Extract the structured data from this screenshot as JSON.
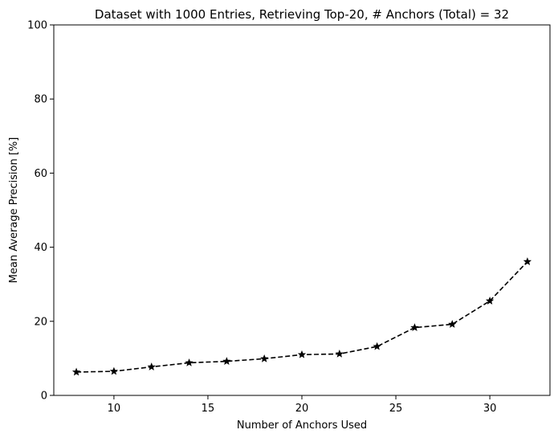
{
  "chart_data": {
    "type": "line",
    "title": "Dataset with 1000 Entries, Retrieving Top-20, # Anchors (Total) = 32",
    "xlabel": "Number of Anchors Used",
    "ylabel": "Mean Average Precision [%]",
    "xlim": [
      6.8,
      33.2
    ],
    "ylim": [
      0,
      100
    ],
    "xticks": [
      10,
      15,
      20,
      25,
      30
    ],
    "yticks": [
      0,
      20,
      40,
      60,
      80,
      100
    ],
    "grid": false,
    "series": [
      {
        "color": "#000000",
        "linestyle": "dashed",
        "marker": "star",
        "x": [
          8,
          10,
          12,
          14,
          16,
          18,
          20,
          22,
          24,
          26,
          28,
          30,
          32
        ],
        "y": [
          6.3,
          6.5,
          7.7,
          8.8,
          9.2,
          9.9,
          11.0,
          11.2,
          13.2,
          18.3,
          19.2,
          25.5,
          36.1
        ]
      }
    ]
  }
}
